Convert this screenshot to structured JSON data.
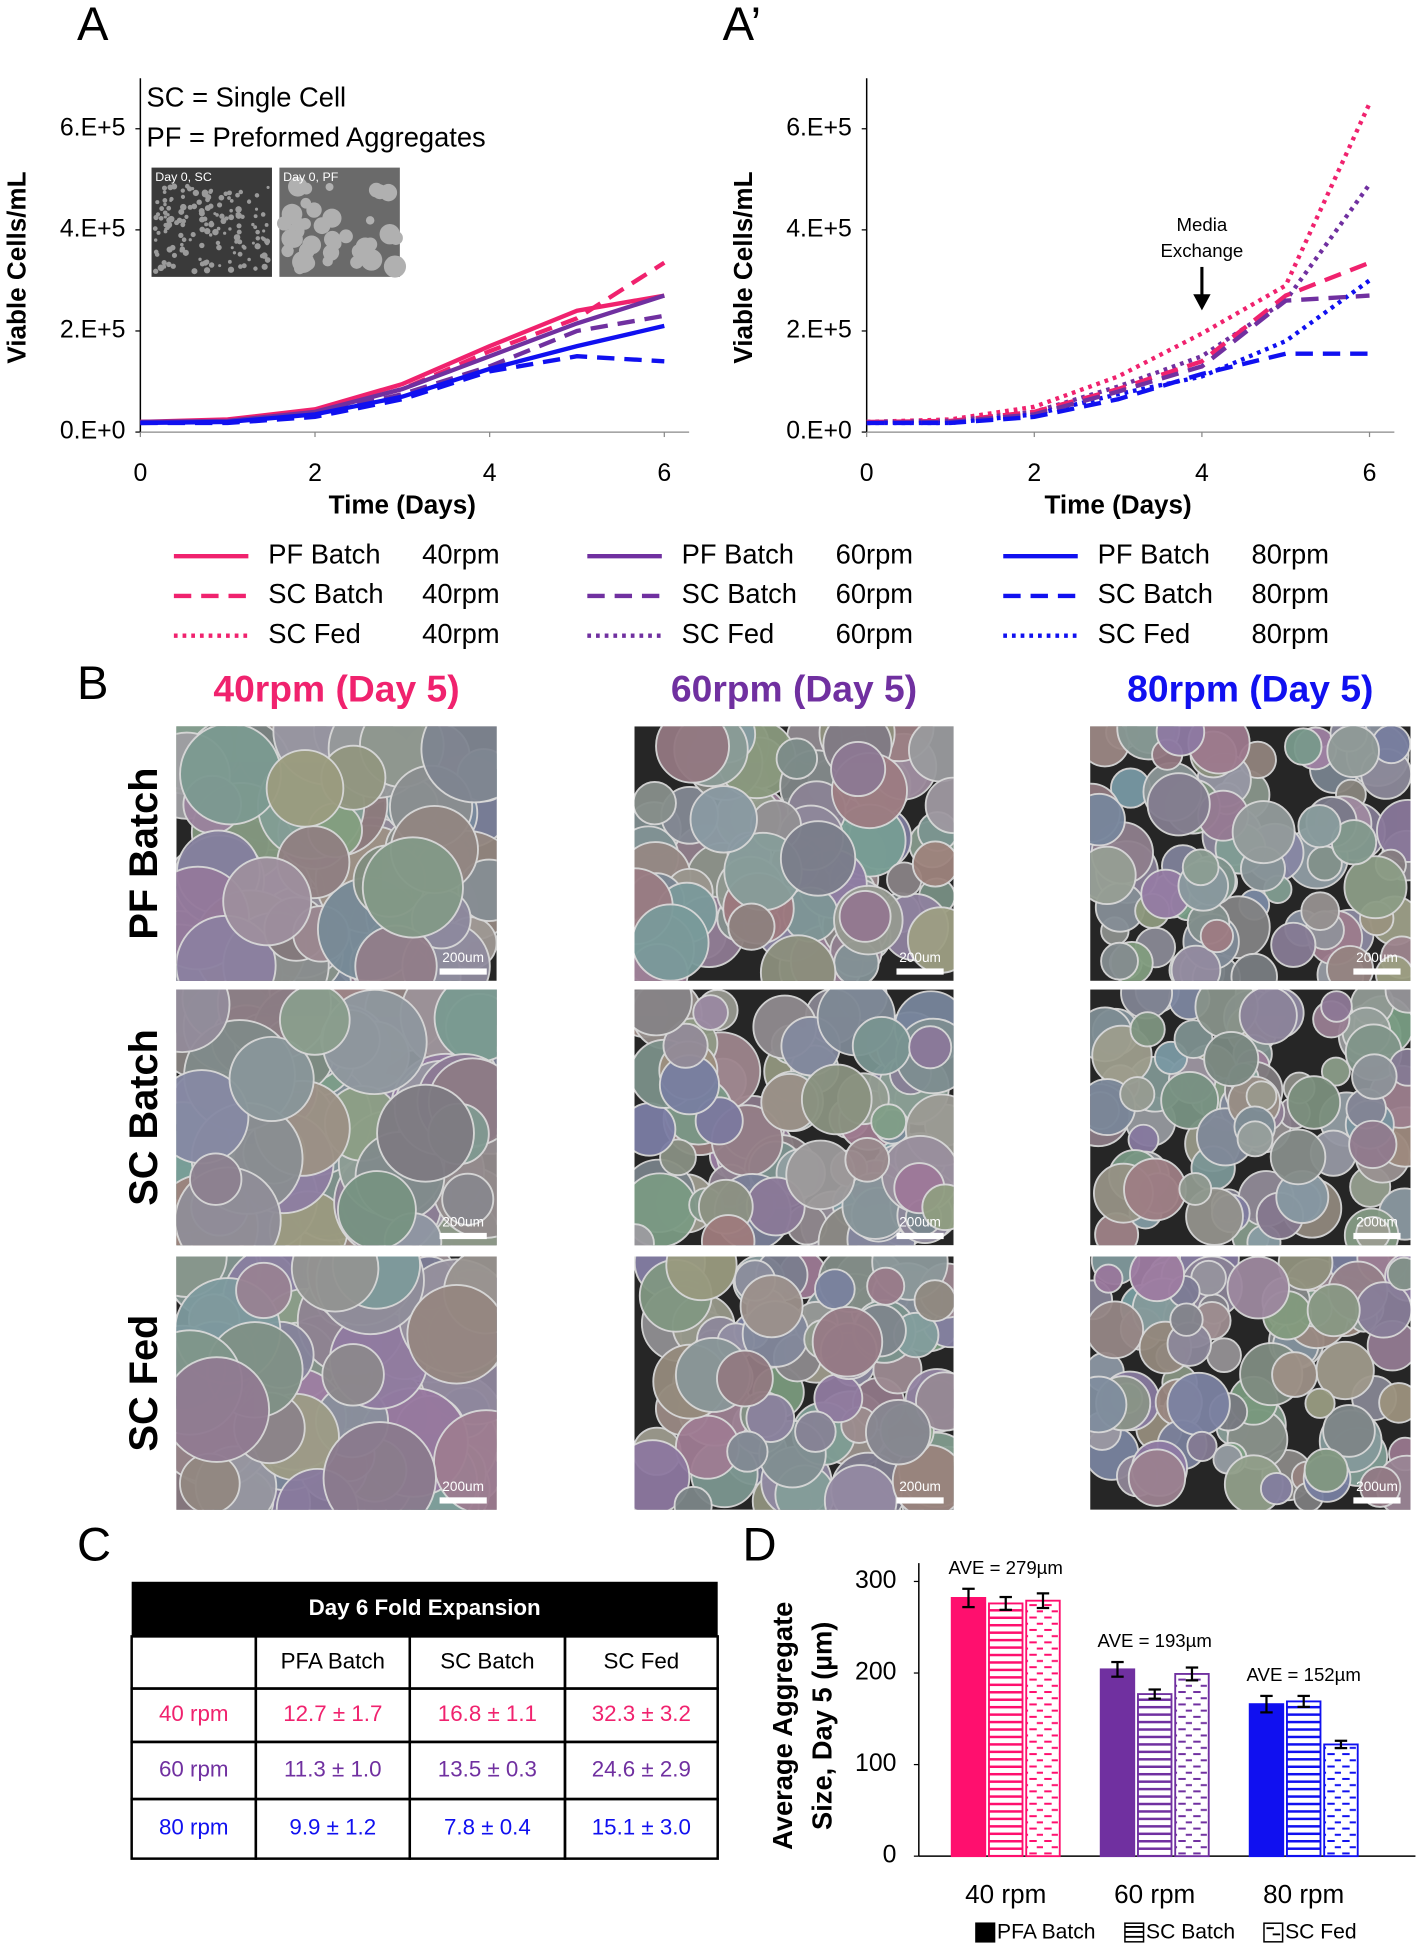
{
  "panel_labels": [
    "A",
    "A’",
    "B",
    "C",
    "D"
  ],
  "chart_data": [
    {
      "type": "line",
      "ylabel": "Viable Cells/mL",
      "xlabel": "Time (Days)",
      "x": [
        0,
        1,
        2,
        3,
        4,
        5,
        6
      ],
      "xlim": [
        0,
        6
      ],
      "xticks": [
        0,
        2,
        4,
        6
      ],
      "ylim": [
        0,
        700000
      ],
      "yticks": [
        {
          "value": 0,
          "label": "0.E+0"
        },
        {
          "value": 200000,
          "label": "2.E+5"
        },
        {
          "value": 400000,
          "label": "4.E+5"
        },
        {
          "value": 600000,
          "label": "6.E+5"
        }
      ],
      "notes": [
        "SC = Single Cell",
        "PF = Preformed Aggregates"
      ],
      "inset_labels": [
        "Day 0, SC",
        "Day 0, PF"
      ],
      "series": [
        {
          "name": "PF Batch",
          "rpm": "40rpm",
          "color": "#f0226e",
          "style": "solid",
          "values": [
            20000,
            25000,
            45000,
            95000,
            170000,
            240000,
            270000
          ]
        },
        {
          "name": "SC Batch",
          "rpm": "40rpm",
          "color": "#f0226e",
          "style": "dashed",
          "values": [
            20000,
            22000,
            40000,
            85000,
            160000,
            225000,
            335000
          ]
        },
        {
          "name": "PF Batch",
          "rpm": "60rpm",
          "color": "#7030a0",
          "style": "solid",
          "values": [
            20000,
            22000,
            40000,
            85000,
            150000,
            215000,
            270000
          ]
        },
        {
          "name": "SC Batch",
          "rpm": "60rpm",
          "color": "#7030a0",
          "style": "dashed",
          "values": [
            18000,
            20000,
            35000,
            75000,
            130000,
            200000,
            230000
          ]
        },
        {
          "name": "PF Batch",
          "rpm": "80rpm",
          "color": "#1010f0",
          "style": "solid",
          "values": [
            18000,
            20000,
            35000,
            70000,
            125000,
            170000,
            210000
          ]
        },
        {
          "name": "SC Batch",
          "rpm": "80rpm",
          "color": "#1010f0",
          "style": "dashed",
          "values": [
            18000,
            18000,
            30000,
            65000,
            120000,
            150000,
            140000
          ]
        }
      ]
    },
    {
      "type": "line",
      "ylabel": "Viable Cells/mL",
      "xlabel": "Time (Days)",
      "x": [
        0,
        1,
        2,
        3,
        4,
        5,
        6
      ],
      "xlim": [
        0,
        6
      ],
      "xticks": [
        0,
        2,
        4,
        6
      ],
      "ylim": [
        0,
        700000
      ],
      "yticks": [
        {
          "value": 0,
          "label": "0.E+0"
        },
        {
          "value": 200000,
          "label": "2.E+5"
        },
        {
          "value": 400000,
          "label": "4.E+5"
        },
        {
          "value": 600000,
          "label": "6.E+5"
        }
      ],
      "annotation": {
        "lines": [
          "Media",
          "Exchange"
        ],
        "x": 4
      },
      "series": [
        {
          "name": "SC Fed",
          "rpm": "40rpm",
          "color": "#f0226e",
          "style": "dotted",
          "values": [
            20000,
            25000,
            50000,
            110000,
            195000,
            290000,
            650000
          ]
        },
        {
          "name": "SC Fed",
          "rpm": "60rpm",
          "color": "#7030a0",
          "style": "dotted",
          "values": [
            20000,
            22000,
            40000,
            90000,
            150000,
            260000,
            490000
          ]
        },
        {
          "name": "SC Fed",
          "rpm": "80rpm",
          "color": "#1010f0",
          "style": "dotted",
          "values": [
            18000,
            18000,
            35000,
            75000,
            110000,
            180000,
            300000
          ]
        },
        {
          "color": "#f0226e",
          "style": "dashed",
          "values": [
            20000,
            22000,
            40000,
            85000,
            140000,
            270000,
            335000
          ]
        },
        {
          "color": "#7030a0",
          "style": "dashed",
          "values": [
            18000,
            20000,
            35000,
            80000,
            130000,
            260000,
            270000
          ]
        },
        {
          "color": "#1010f0",
          "style": "dashed",
          "values": [
            18000,
            18000,
            30000,
            65000,
            115000,
            155000,
            155000
          ]
        }
      ]
    },
    {
      "type": "bar",
      "ylabel": [
        "Average Aggregate",
        "Size, Day 5 (µm)"
      ],
      "categories": [
        "40 rpm",
        "60 rpm",
        "80 rpm"
      ],
      "category_colors": [
        "#ff0f6e",
        "#7030a0",
        "#1010f0"
      ],
      "ylim": [
        0,
        320
      ],
      "yticks": [
        0,
        100,
        200,
        300
      ],
      "annotations": [
        "AVE = 279µm",
        "AVE = 193µm",
        "AVE = 152µm"
      ],
      "series": [
        {
          "name": "PFA Batch",
          "pattern": "solid",
          "values": [
            282,
            204,
            166
          ],
          "errors": [
            10,
            8,
            9
          ]
        },
        {
          "name": "SC Batch",
          "pattern": "horizontal",
          "values": [
            276,
            177,
            169
          ],
          "errors": [
            7,
            5,
            6
          ]
        },
        {
          "name": "SC Fed",
          "pattern": "dashed",
          "values": [
            279,
            199,
            122
          ],
          "errors": [
            8,
            7,
            4
          ]
        }
      ]
    }
  ],
  "micrographs": {
    "columns": [
      {
        "title": "40rpm (Day 5)",
        "color": "#f0226e"
      },
      {
        "title": "60rpm (Day 5)",
        "color": "#7030a0"
      },
      {
        "title": "80rpm (Day 5)",
        "color": "#1010f0"
      }
    ],
    "rows": [
      "PF Batch",
      "SC Batch",
      "SC Fed"
    ],
    "scale_bar": "200um"
  },
  "table": {
    "title": "Day 6 Fold Expansion",
    "columns": [
      "PFA Batch",
      "SC Batch",
      "SC Fed"
    ],
    "rows": [
      {
        "label": "40 rpm",
        "color": "#f0226e",
        "cells": [
          "12.7 ± 1.7",
          "16.8 ± 1.1",
          "32.3 ± 3.2"
        ]
      },
      {
        "label": "60 rpm",
        "color": "#7030a0",
        "cells": [
          "11.3 ± 1.0",
          "13.5 ± 0.3",
          "24.6 ± 2.9"
        ]
      },
      {
        "label": "80 rpm",
        "color": "#1010f0",
        "cells": [
          "9.9 ± 1.2",
          "7.8 ± 0.4",
          "15.1 ± 3.0"
        ]
      }
    ]
  }
}
